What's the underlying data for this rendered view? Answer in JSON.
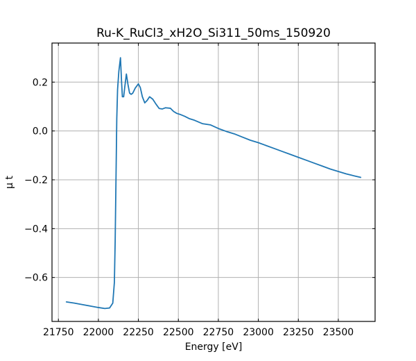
{
  "chart_data": {
    "type": "line",
    "title": "Ru-K_RuCl3_xH2O_Si311_50ms_150920",
    "xlabel": "Energy [eV]",
    "ylabel": "μ t",
    "xlim": [
      21710,
      23730
    ],
    "ylim": [
      -0.78,
      0.36
    ],
    "x_ticks": [
      21750,
      22000,
      22250,
      22500,
      22750,
      23000,
      23250,
      23500
    ],
    "x_tick_labels": [
      "21750",
      "22000",
      "22250",
      "22500",
      "22750",
      "23000",
      "23250",
      "23500"
    ],
    "y_ticks": [
      -0.6,
      -0.4,
      -0.2,
      0.0,
      0.2
    ],
    "y_tick_labels": [
      "−0.6",
      "−0.4",
      "−0.2",
      "0.0",
      "0.2"
    ],
    "grid": true,
    "colors": {
      "series": "#1f77b4",
      "grid": "#b0b0b0",
      "frame": "#000000"
    },
    "series": [
      {
        "x": [
          21800,
          21850,
          21900,
          21950,
          22000,
          22040,
          22070,
          22090,
          22100,
          22105,
          22110,
          22115,
          22120,
          22128,
          22138,
          22145,
          22150,
          22158,
          22165,
          22175,
          22185,
          22195,
          22205,
          22215,
          22230,
          22250,
          22262,
          22275,
          22290,
          22305,
          22320,
          22340,
          22360,
          22380,
          22400,
          22420,
          22450,
          22470,
          22490,
          22510,
          22540,
          22570,
          22600,
          22650,
          22700,
          22750,
          22800,
          22850,
          22900,
          22950,
          23000,
          23050,
          23100,
          23150,
          23200,
          23250,
          23300,
          23350,
          23400,
          23450,
          23500,
          23550,
          23600,
          23640
        ],
        "y": [
          -0.7,
          -0.705,
          -0.711,
          -0.717,
          -0.723,
          -0.727,
          -0.725,
          -0.705,
          -0.62,
          -0.45,
          -0.2,
          0.05,
          0.17,
          0.245,
          0.3,
          0.2,
          0.14,
          0.14,
          0.18,
          0.233,
          0.19,
          0.155,
          0.15,
          0.155,
          0.175,
          0.193,
          0.178,
          0.14,
          0.115,
          0.125,
          0.14,
          0.13,
          0.11,
          0.092,
          0.09,
          0.095,
          0.093,
          0.08,
          0.072,
          0.068,
          0.06,
          0.05,
          0.044,
          0.03,
          0.025,
          0.01,
          -0.002,
          -0.012,
          -0.025,
          -0.038,
          -0.048,
          -0.06,
          -0.072,
          -0.084,
          -0.096,
          -0.108,
          -0.12,
          -0.132,
          -0.144,
          -0.156,
          -0.166,
          -0.176,
          -0.184,
          -0.19
        ]
      }
    ]
  }
}
